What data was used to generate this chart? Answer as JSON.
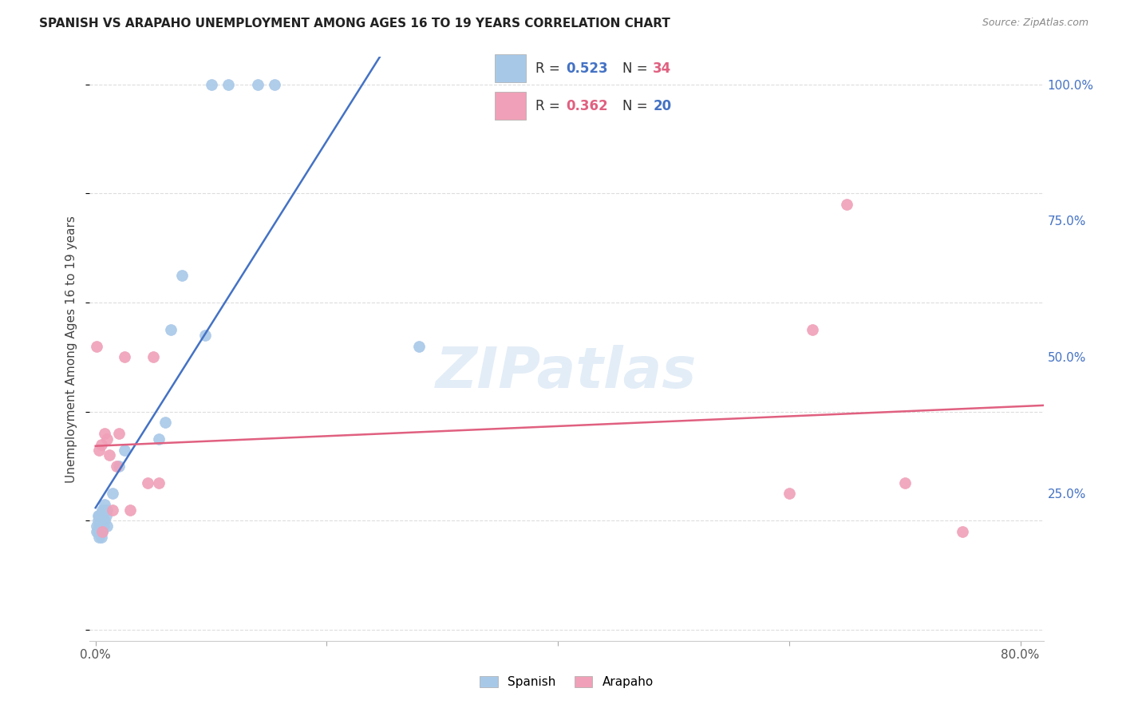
{
  "title": "SPANISH VS ARAPAHO UNEMPLOYMENT AMONG AGES 16 TO 19 YEARS CORRELATION CHART",
  "source": "Source: ZipAtlas.com",
  "ylabel": "Unemployment Among Ages 16 to 19 years",
  "xlim": [
    -0.005,
    0.82
  ],
  "ylim": [
    -0.02,
    1.05
  ],
  "xtick_positions": [
    0.0,
    0.2,
    0.4,
    0.6,
    0.8
  ],
  "xtick_labels": [
    "0.0%",
    "",
    "",
    "",
    "80.0%"
  ],
  "yticks_right": [
    0.0,
    0.25,
    0.5,
    0.75,
    1.0
  ],
  "ytick_right_labels": [
    "",
    "25.0%",
    "50.0%",
    "75.0%",
    "100.0%"
  ],
  "spanish_R": 0.523,
  "spanish_N": 34,
  "arapaho_R": 0.362,
  "arapaho_N": 20,
  "spanish_color": "#A8C8E8",
  "arapaho_color": "#F0A0B8",
  "spanish_line_color": "#4472C4",
  "arapaho_line_color": "#E06080",
  "watermark": "ZIPatlas",
  "background_color": "#FFFFFF",
  "grid_color": "#DDDDDD",
  "spanish_x": [
    0.001,
    0.001,
    0.002,
    0.002,
    0.002,
    0.003,
    0.003,
    0.003,
    0.004,
    0.004,
    0.005,
    0.005,
    0.006,
    0.006,
    0.007,
    0.007,
    0.008,
    0.008,
    0.009,
    0.01,
    0.01,
    0.015,
    0.02,
    0.025,
    0.055,
    0.06,
    0.065,
    0.075,
    0.095,
    0.1,
    0.115,
    0.14,
    0.155,
    0.28
  ],
  "spanish_y": [
    0.18,
    0.19,
    0.18,
    0.2,
    0.21,
    0.17,
    0.19,
    0.21,
    0.18,
    0.2,
    0.17,
    0.19,
    0.18,
    0.22,
    0.19,
    0.22,
    0.2,
    0.23,
    0.21,
    0.19,
    0.22,
    0.25,
    0.3,
    0.33,
    0.35,
    0.38,
    0.55,
    0.65,
    0.54,
    1.0,
    1.0,
    1.0,
    1.0,
    0.52
  ],
  "arapaho_x": [
    0.001,
    0.003,
    0.005,
    0.006,
    0.008,
    0.01,
    0.012,
    0.015,
    0.018,
    0.02,
    0.025,
    0.03,
    0.045,
    0.05,
    0.055,
    0.6,
    0.62,
    0.65,
    0.7,
    0.75
  ],
  "arapaho_y": [
    0.52,
    0.33,
    0.34,
    0.18,
    0.36,
    0.35,
    0.32,
    0.22,
    0.3,
    0.36,
    0.5,
    0.22,
    0.27,
    0.5,
    0.27,
    0.25,
    0.55,
    0.78,
    0.27,
    0.18
  ]
}
